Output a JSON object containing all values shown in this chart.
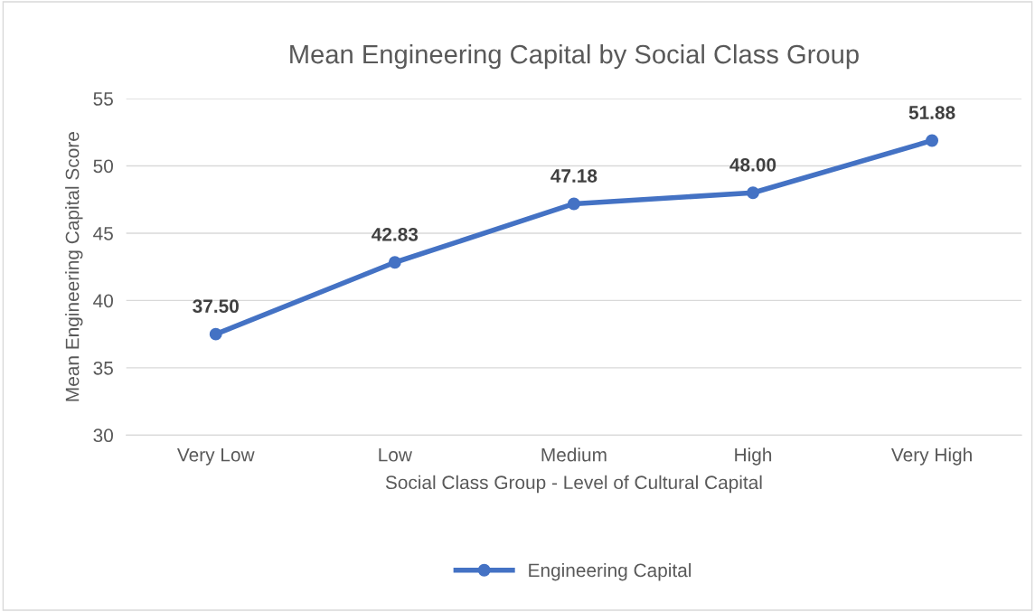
{
  "chart_data": {
    "type": "line",
    "title": "Mean Engineering Capital by Social Class Group",
    "xlabel": "Social Class Group - Level of Cultural Capital",
    "ylabel": "Mean Engineering Capital Score",
    "categories": [
      "Very Low",
      "Low",
      "Medium",
      "High",
      "Very High"
    ],
    "series": [
      {
        "name": "Engineering Capital",
        "color": "#4472c4",
        "values": [
          37.5,
          42.83,
          47.18,
          48.0,
          51.88
        ],
        "value_labels": [
          "37.50",
          "42.83",
          "47.18",
          "48.00",
          "51.88"
        ]
      }
    ],
    "ylim": [
      30,
      55
    ],
    "yticks": [
      30,
      35,
      40,
      45,
      50,
      55
    ],
    "grid": "y",
    "legend": "bottom",
    "marker": "circle",
    "line_style": "solid"
  }
}
